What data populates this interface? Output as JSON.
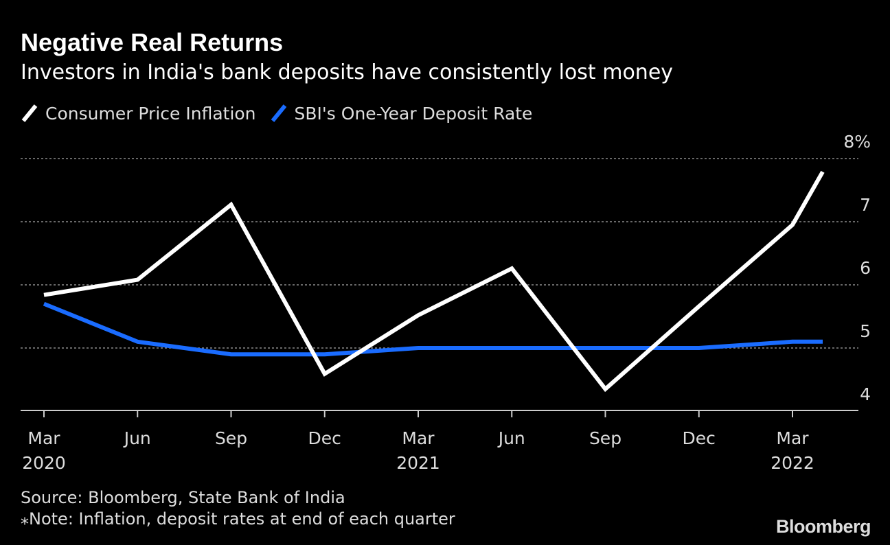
{
  "chart_data": {
    "type": "line",
    "title": "Negative Real Returns",
    "subtitle": "Investors in India's bank deposits have consistently lost money",
    "x": [
      "Mar 2020",
      "Jun 2020",
      "Sep 2020",
      "Dec 2020",
      "Mar 2021",
      "Jun 2021",
      "Sep 2021",
      "Dec 2021",
      "Mar 2022",
      "Apr 2022"
    ],
    "series": [
      {
        "name": "Consumer Price Inflation",
        "color": "#ffffff",
        "values": [
          5.84,
          6.08,
          7.27,
          4.59,
          5.52,
          6.26,
          4.35,
          5.66,
          6.95,
          7.79
        ]
      },
      {
        "name": "SBI's One-Year Deposit Rate",
        "color": "#1a6cff",
        "values": [
          5.7,
          5.1,
          4.9,
          4.9,
          5.0,
          5.0,
          5.0,
          5.0,
          5.1,
          5.1
        ]
      }
    ],
    "ylim": [
      3.9,
      8.0
    ],
    "yticks": [
      {
        "value": 8,
        "label": "8%"
      },
      {
        "value": 7,
        "label": "7"
      },
      {
        "value": 6,
        "label": "6"
      },
      {
        "value": 5,
        "label": "5"
      },
      {
        "value": 4,
        "label": "4"
      }
    ],
    "xticks": [
      {
        "label": "Mar",
        "year": "2020"
      },
      {
        "label": "Jun",
        "year": ""
      },
      {
        "label": "Sep",
        "year": ""
      },
      {
        "label": "Dec",
        "year": ""
      },
      {
        "label": "Mar",
        "year": "2021"
      },
      {
        "label": "Jun",
        "year": ""
      },
      {
        "label": "Sep",
        "year": ""
      },
      {
        "label": "Dec",
        "year": ""
      },
      {
        "label": "Mar",
        "year": "2022"
      }
    ],
    "grid": true,
    "legend_position": "top-left",
    "xlabel": "",
    "ylabel": ""
  },
  "footer": {
    "source": "Source: Bloomberg, State Bank of India",
    "note": "⁎Note: Inflation, deposit rates at end of each quarter"
  },
  "brand": "Bloomberg"
}
